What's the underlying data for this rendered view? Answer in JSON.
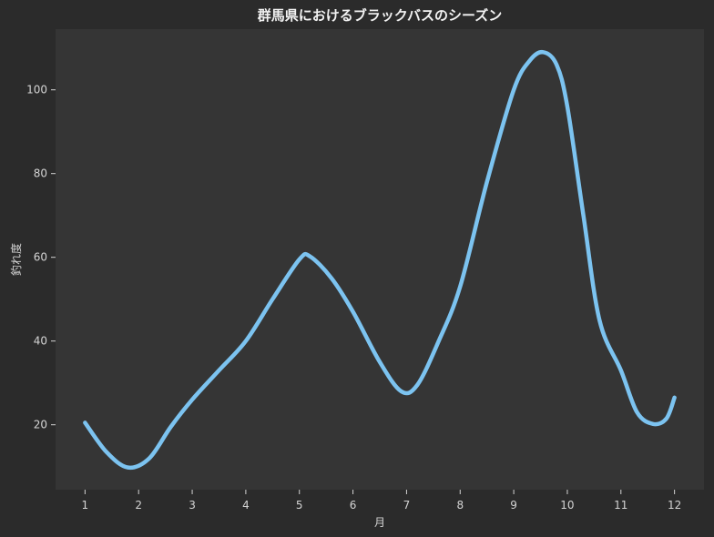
{
  "chart_data": {
    "type": "line",
    "title": "群馬県におけるブラックバスのシーズン",
    "xlabel": "月",
    "ylabel": "釣れ度",
    "x": [
      1,
      2,
      3,
      4,
      5,
      6,
      7,
      8,
      9,
      10,
      11,
      12
    ],
    "series": [
      {
        "values": [
          20.5,
          10.5,
          26,
          40,
          59.5,
          47,
          28,
          53,
          100,
          96,
          33,
          26.5
        ],
        "color": "#7cc3f0"
      }
    ],
    "curve_samples": [
      [
        1.0,
        20.5
      ],
      [
        1.4,
        13.5
      ],
      [
        1.8,
        9.8
      ],
      [
        2.2,
        12
      ],
      [
        2.6,
        19.5
      ],
      [
        3.0,
        26
      ],
      [
        3.5,
        33
      ],
      [
        4.0,
        40
      ],
      [
        4.5,
        50
      ],
      [
        5.0,
        59.5
      ],
      [
        5.2,
        60.2
      ],
      [
        5.6,
        55
      ],
      [
        6.0,
        47
      ],
      [
        6.5,
        35
      ],
      [
        6.9,
        28
      ],
      [
        7.2,
        29.5
      ],
      [
        7.6,
        40
      ],
      [
        8.0,
        53
      ],
      [
        8.5,
        78
      ],
      [
        9.0,
        100
      ],
      [
        9.3,
        107
      ],
      [
        9.55,
        109
      ],
      [
        9.8,
        106
      ],
      [
        10.0,
        96
      ],
      [
        10.3,
        70
      ],
      [
        10.6,
        45
      ],
      [
        11.0,
        33
      ],
      [
        11.3,
        23
      ],
      [
        11.6,
        20.2
      ],
      [
        11.85,
        21.5
      ],
      [
        12.0,
        26.5
      ]
    ],
    "xlim": [
      0.45,
      12.55
    ],
    "ylim": [
      4.5,
      114.5
    ],
    "xticks": [
      1,
      2,
      3,
      4,
      5,
      6,
      7,
      8,
      9,
      10,
      11,
      12
    ],
    "yticks": [
      20,
      40,
      60,
      80,
      100
    ],
    "grid": false,
    "colors": {
      "figure_bg": "#2b2b2b",
      "plot_bg": "#353535",
      "line": "#7cc3f0",
      "text": "#d4d4d4"
    }
  }
}
